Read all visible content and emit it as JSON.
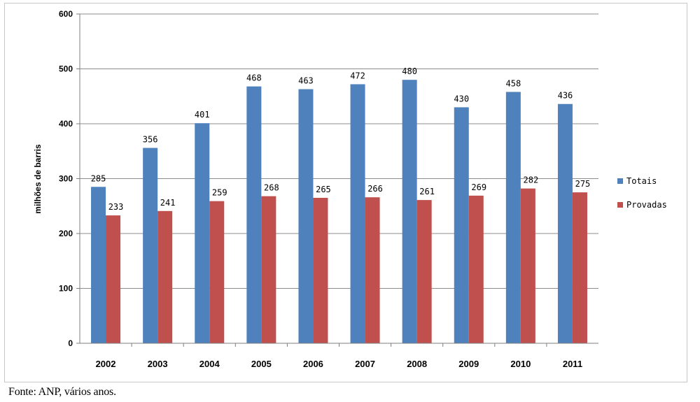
{
  "chart_data": {
    "type": "bar",
    "title": "",
    "xlabel": "",
    "ylabel": "milhões de barris",
    "ylim": [
      0,
      600
    ],
    "yticks": [
      0,
      100,
      200,
      300,
      400,
      500,
      600
    ],
    "grid": true,
    "legend_position": "right",
    "categories": [
      "2002",
      "2003",
      "2004",
      "2005",
      "2006",
      "2007",
      "2008",
      "2009",
      "2010",
      "2011"
    ],
    "series": [
      {
        "name": "Totais",
        "color": "#4f81bd",
        "values": [
          285,
          356,
          401,
          468,
          463,
          472,
          480,
          430,
          458,
          436
        ]
      },
      {
        "name": "Provadas",
        "color": "#c0504d",
        "values": [
          233,
          241,
          259,
          268,
          265,
          266,
          261,
          269,
          282,
          275
        ]
      }
    ]
  },
  "footer": {
    "source": "Fonte: ANP, vários anos."
  }
}
